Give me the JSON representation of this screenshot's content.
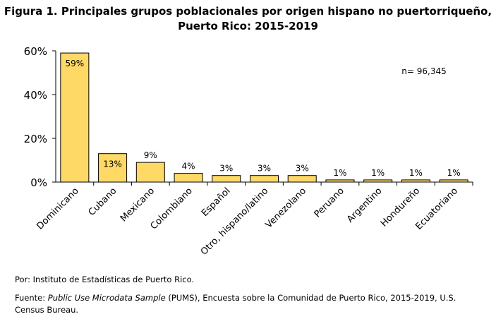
{
  "title_line1": "Figura 1. Principales grupos poblacionales por origen hispano no puertorriqueño,",
  "title_line2": "Puerto Rico: 2015-2019",
  "annotation": "n= 96,345",
  "footer": {
    "por": "Por: Instituto de Estadísticas de Puerto Rico.",
    "fuente_prefix": "Fuente: ",
    "fuente_italic": "Public Use Microdata Sample",
    "fuente_rest": " (PUMS), Encuesta sobre la Comunidad de Puerto Rico, 2015-2019, U.S. Census Bureau."
  },
  "chart_data": {
    "type": "bar",
    "title": "Figura 1. Principales grupos poblacionales por origen hispano no puertorriqueño, Puerto Rico: 2015-2019",
    "categories": [
      "Dominicano",
      "Cubano",
      "Mexicano",
      "Colombiano",
      "Español",
      "Otro, hispano/latino",
      "Venezolano",
      "Peruano",
      "Argentino",
      "Hondureño",
      "Ecuatoriano"
    ],
    "values": [
      59,
      13,
      9,
      4,
      3,
      3,
      3,
      1,
      1,
      1,
      1
    ],
    "data_labels": [
      "59%",
      "13%",
      "9%",
      "4%",
      "3%",
      "3%",
      "3%",
      "1%",
      "1%",
      "1%",
      "1%"
    ],
    "ylim": [
      0,
      60
    ],
    "yticks": [
      0,
      20,
      40,
      60
    ],
    "ytick_labels": [
      "0%",
      "20%",
      "40%",
      "60%"
    ],
    "grid": false,
    "bar_color": "#FFD966",
    "bar_edge_color": "#000000"
  }
}
